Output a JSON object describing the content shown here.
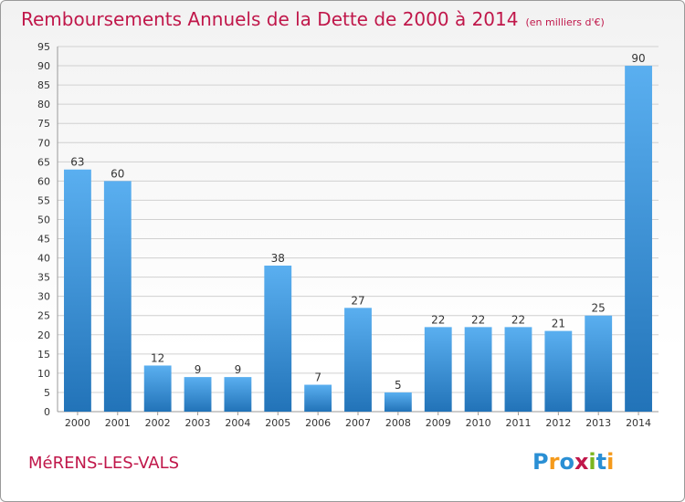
{
  "title": "Remboursements Annuels de la Dette de 2000 à 2014",
  "unit": "(en milliers d'€)",
  "commune": "MéRENS-LES-VALS",
  "logo": {
    "text": "Proxiti",
    "letters": [
      {
        "ch": "P",
        "color": "#2a8fd4"
      },
      {
        "ch": "r",
        "color": "#f59a1b"
      },
      {
        "ch": "o",
        "color": "#2a8fd4"
      },
      {
        "ch": "x",
        "color": "#c0174a"
      },
      {
        "ch": "i",
        "color": "#7bb51f"
      },
      {
        "ch": "t",
        "color": "#2a8fd4"
      },
      {
        "ch": "i",
        "color": "#f59a1b"
      }
    ]
  },
  "colors": {
    "title": "#c0174a",
    "bar_top": "#5aaff0",
    "bar_bottom": "#2273b8",
    "grid": "#d0d0d0"
  },
  "chart_data": {
    "type": "bar",
    "categories": [
      "2000",
      "2001",
      "2002",
      "2003",
      "2004",
      "2005",
      "2006",
      "2007",
      "2008",
      "2009",
      "2010",
      "2011",
      "2012",
      "2013",
      "2014"
    ],
    "values": [
      63,
      60,
      12,
      9,
      9,
      38,
      7,
      27,
      5,
      22,
      22,
      22,
      21,
      25,
      90
    ],
    "ylim": [
      0,
      95
    ],
    "yticks": [
      0,
      5,
      10,
      15,
      20,
      25,
      30,
      35,
      40,
      45,
      50,
      55,
      60,
      65,
      70,
      75,
      80,
      85,
      90,
      95
    ],
    "grid": true,
    "legend": "none"
  }
}
